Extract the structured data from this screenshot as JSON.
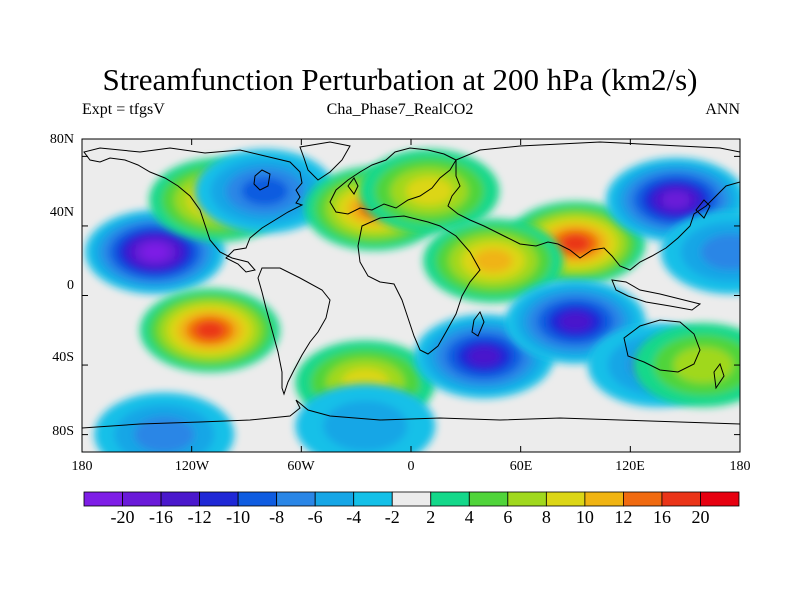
{
  "title": "Streamfunction Perturbation at 200 hPa (km2/s)",
  "left_string": "Expt = tfgsV",
  "center_string": "Cha_Phase7_RealCO2",
  "right_string": "ANN",
  "lat_ticks": [
    "80N",
    "40N",
    "0",
    "40S",
    "80S"
  ],
  "lon_ticks": [
    "180",
    "120W",
    "60W",
    "0",
    "60E",
    "120E",
    "180"
  ],
  "colorbar": {
    "labels": [
      "-20",
      "-16",
      "-12",
      "-10",
      "-8",
      "-6",
      "-4",
      "-2",
      "2",
      "4",
      "6",
      "8",
      "10",
      "12",
      "16",
      "20"
    ],
    "colors": [
      "#7e1ee6",
      "#6a1ad9",
      "#4a18cc",
      "#1f28d6",
      "#0f5ce0",
      "#2a86e6",
      "#16a6e6",
      "#14c0e8",
      "#ececec",
      "#14d88a",
      "#50d43a",
      "#a0d81e",
      "#dcd616",
      "#f0b412",
      "#f06a10",
      "#ea3418",
      "#e60010"
    ]
  },
  "map_data": {
    "projection": "cylindrical-equidistant",
    "lon_range": [
      -180,
      180
    ],
    "lat_range": [
      -90,
      90
    ],
    "field": "streamfunction",
    "units": "km2/s",
    "anomalies": [
      {
        "lon": -140,
        "lat": 25,
        "value": -20
      },
      {
        "lon": -105,
        "lat": 55,
        "value": 10
      },
      {
        "lon": -80,
        "lat": 60,
        "value": -8
      },
      {
        "lon": -20,
        "lat": 50,
        "value": 12
      },
      {
        "lon": 10,
        "lat": 60,
        "value": 8
      },
      {
        "lon": 90,
        "lat": 30,
        "value": 16
      },
      {
        "lon": 45,
        "lat": 20,
        "value": 10
      },
      {
        "lon": 145,
        "lat": 55,
        "value": -16
      },
      {
        "lon": 175,
        "lat": 25,
        "value": -6
      },
      {
        "lon": -110,
        "lat": -20,
        "value": 16
      },
      {
        "lon": -25,
        "lat": -50,
        "value": 8
      },
      {
        "lon": 40,
        "lat": -35,
        "value": -12
      },
      {
        "lon": 90,
        "lat": -15,
        "value": -12
      },
      {
        "lon": 135,
        "lat": -40,
        "value": -6
      },
      {
        "lon": 160,
        "lat": -40,
        "value": 6
      },
      {
        "lon": -25,
        "lat": -75,
        "value": -4
      },
      {
        "lon": -135,
        "lat": -80,
        "value": -6
      }
    ]
  }
}
